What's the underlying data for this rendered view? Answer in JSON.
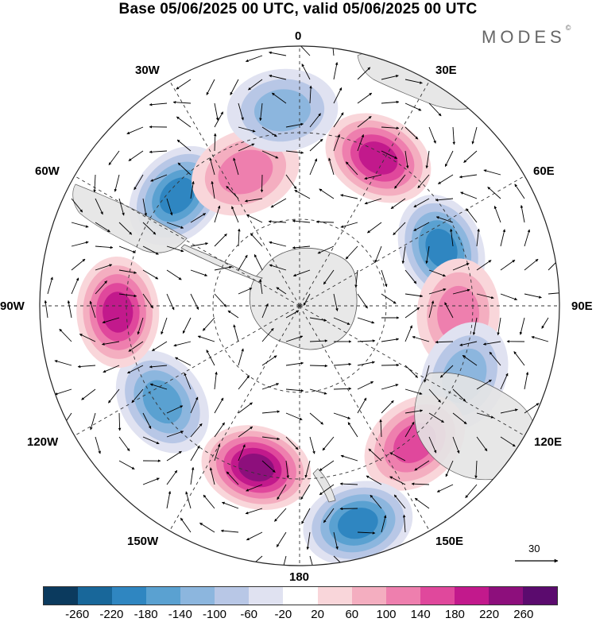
{
  "title": "Base 05/06/2025 00 UTC, valid 05/06/2025 00 UTC",
  "brand": "MODES",
  "brand_mark": "©",
  "lon_labels": {
    "n0": "0",
    "n30e": "30E",
    "n60e": "60E",
    "n90e": "90E",
    "n120e": "120E",
    "n150e": "150E",
    "n180": "180",
    "n150w": "150W",
    "n120w": "120W",
    "n90w": "90W",
    "n60w": "60W",
    "n30w": "30W"
  },
  "reference_vector": "30",
  "colorbar": {
    "ticks": [
      "-260",
      "-220",
      "-180",
      "-140",
      "-100",
      "-60",
      "-20",
      "20",
      "60",
      "100",
      "140",
      "180",
      "220",
      "260"
    ],
    "colors": [
      "#0b3a5e",
      "#18679a",
      "#2f86c1",
      "#5aa1d1",
      "#8cb6de",
      "#b8c7e6",
      "#e0e2f1",
      "#ffffff",
      "#f9d6da",
      "#f4aec0",
      "#ee7fae",
      "#e0489c",
      "#c2198c",
      "#8d0f7c",
      "#5b0b6e"
    ]
  },
  "anomaly_centers": [
    {
      "lon": 28,
      "colat": 58,
      "value": 180
    },
    {
      "lon": 68,
      "colat": 53,
      "value": -200
    },
    {
      "lon": 93,
      "colat": 55,
      "value": 130
    },
    {
      "lon": 113,
      "colat": 62,
      "value": -110
    },
    {
      "lon": 140,
      "colat": 62,
      "value": 160
    },
    {
      "lon": 165,
      "colat": 78,
      "value": -210
    },
    {
      "lon": -165,
      "colat": 58,
      "value": 220
    },
    {
      "lon": -125,
      "colat": 58,
      "value": -170
    },
    {
      "lon": -92,
      "colat": 63,
      "value": 190
    },
    {
      "lon": -48,
      "colat": 57,
      "value": -190
    },
    {
      "lon": -22,
      "colat": 50,
      "value": 120
    },
    {
      "lon": -5,
      "colat": 68,
      "value": -110
    }
  ]
}
